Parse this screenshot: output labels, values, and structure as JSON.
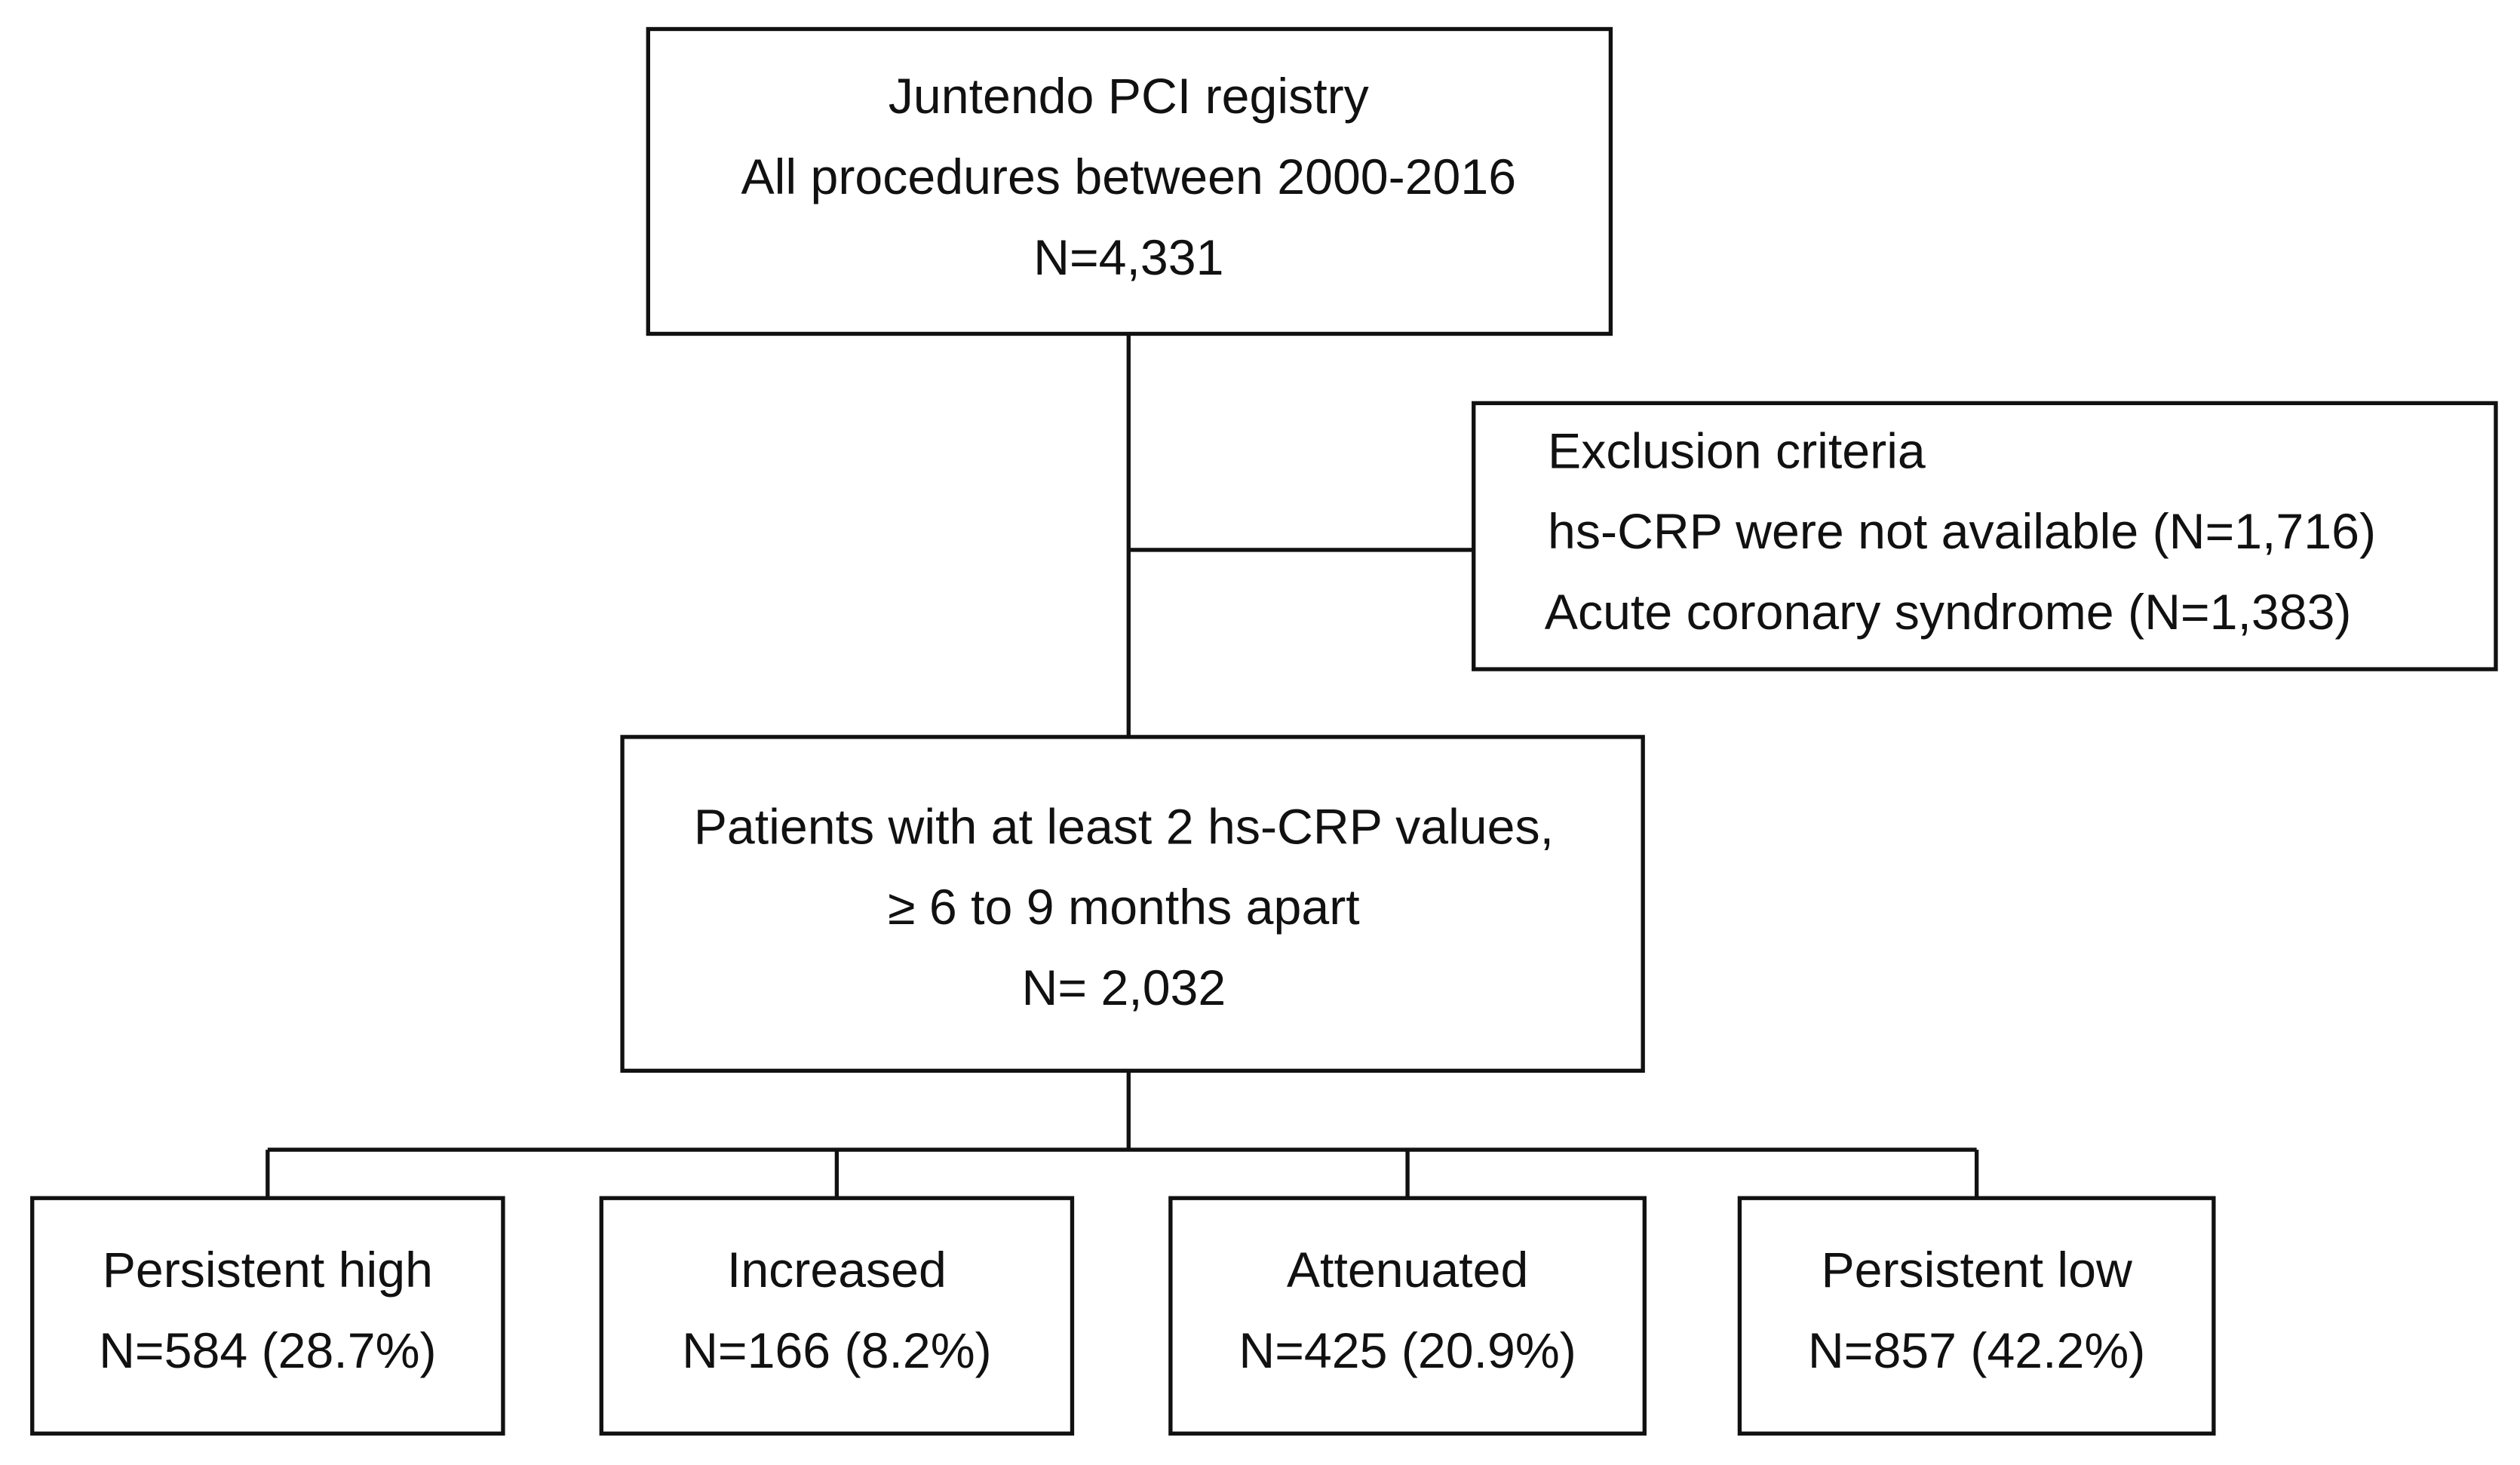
{
  "nodes": [
    {
      "lines": [
        "Juntendo PCI registry",
        "All procedures between 2000-2016",
        "N=4,331"
      ]
    },
    {
      "lines": [
        "Exclusion criteria",
        "hs-CRP were not available (N=1,716)",
        "Acute coronary syndrome (N=1,383)"
      ]
    },
    {
      "lines": [
        "Patients with at least 2 hs-CRP values,",
        "≥ 6 to 9 months apart",
        "N= 2,032"
      ]
    },
    {
      "lines": [
        "Persistent high",
        "N=584 (28.7%)"
      ]
    },
    {
      "lines": [
        "Increased",
        "N=166 (8.2%)"
      ]
    },
    {
      "lines": [
        "Attenuated",
        "N=425 (20.9%)"
      ]
    },
    {
      "lines": [
        "Persistent low",
        "N=857 (42.2%)"
      ]
    }
  ]
}
